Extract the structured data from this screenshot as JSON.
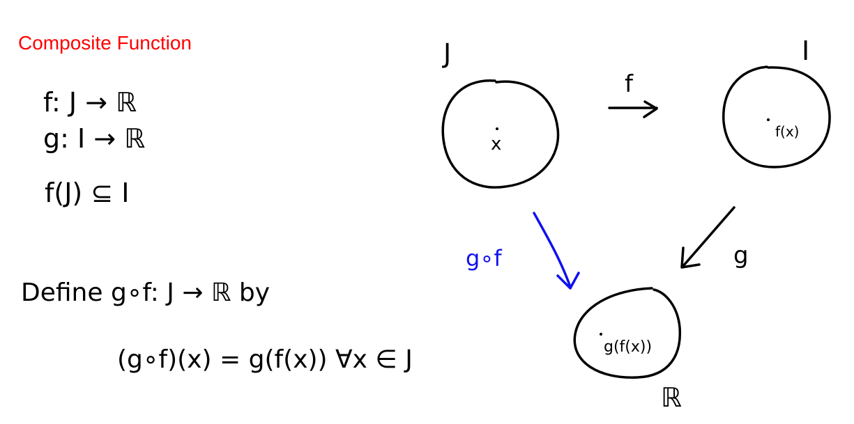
{
  "title": "Composite Function",
  "definitions": {
    "line1": "f: J → ℝ",
    "line2": "g: I → ℝ",
    "line3": "f(J) ⊆ I"
  },
  "define": {
    "line1": "Define  g∘f: J → ℝ  by",
    "line2": "(g∘f)(x) = g(f(x))   ∀x ∈ J"
  },
  "diagram": {
    "set_J": {
      "label": "J",
      "point": "x"
    },
    "set_I": {
      "label": "I",
      "point": "f(x)"
    },
    "set_R": {
      "label": "ℝ",
      "point": "g(f(x))"
    },
    "arrow_f": {
      "label": "f"
    },
    "arrow_g": {
      "label": "g"
    },
    "arrow_gof": {
      "label": "g∘f",
      "color": "#1010ee"
    }
  },
  "colors": {
    "title": "#ff0000",
    "ink": "#000000",
    "composite": "#1010ee"
  }
}
